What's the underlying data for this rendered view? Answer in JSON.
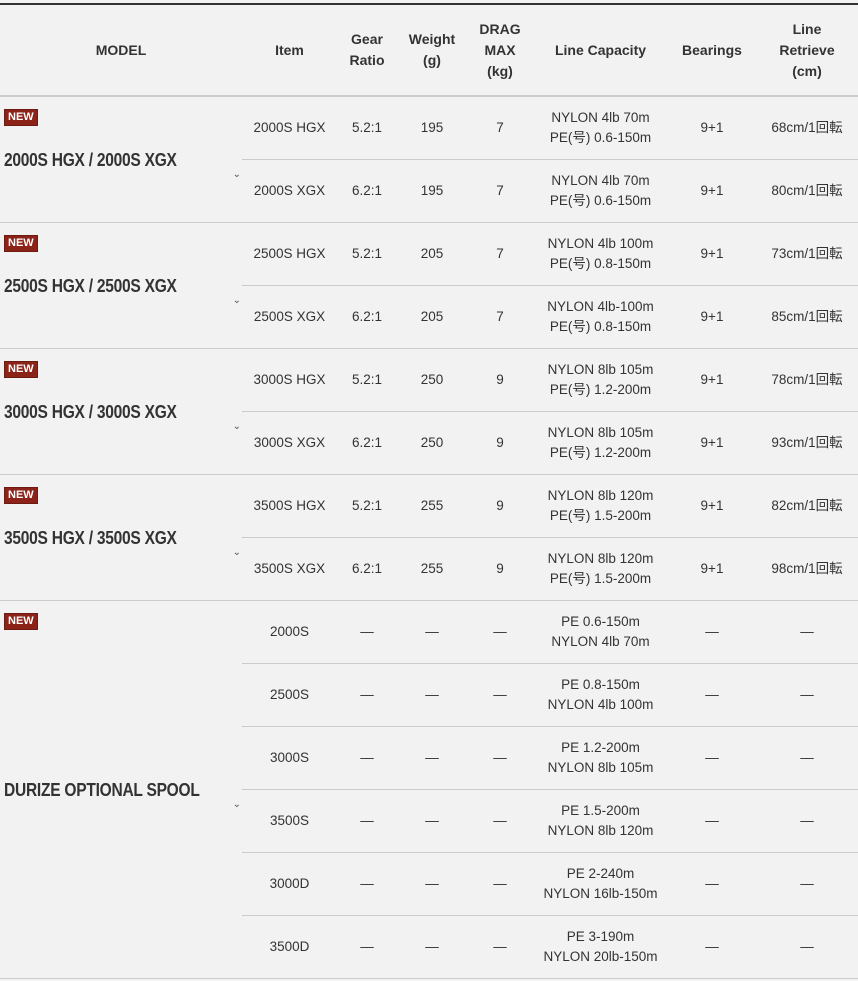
{
  "headers": [
    "MODEL",
    "Item",
    "Gear\nRatio",
    "Weight\n(g)",
    "DRAG\nMAX\n(kg)",
    "Line Capacity",
    "Bearings",
    "Line\nRetrieve\n(cm)"
  ],
  "badge_label": "NEW",
  "colors": {
    "badge": "#8b2318",
    "background": "#f2f2f2",
    "text": "#333333"
  },
  "groups": [
    {
      "model": "2000S HGX / 2000S XGX",
      "new": true,
      "rows": [
        [
          "2000S HGX",
          "5.2:1",
          "195",
          "7",
          "NYLON 4lb 70m\nPE(号) 0.6-150m",
          "9+1",
          "68cm/1回転"
        ],
        [
          "2000S XGX",
          "6.2:1",
          "195",
          "7",
          "NYLON 4lb 70m\nPE(号) 0.6-150m",
          "9+1",
          "80cm/1回転"
        ]
      ]
    },
    {
      "model": "2500S HGX / 2500S XGX",
      "new": true,
      "rows": [
        [
          "2500S HGX",
          "5.2:1",
          "205",
          "7",
          "NYLON 4lb 100m\nPE(号) 0.8-150m",
          "9+1",
          "73cm/1回転"
        ],
        [
          "2500S XGX",
          "6.2:1",
          "205",
          "7",
          "NYLON 4lb-100m\nPE(号) 0.8-150m",
          "9+1",
          "85cm/1回転"
        ]
      ]
    },
    {
      "model": "3000S HGX / 3000S XGX",
      "new": true,
      "rows": [
        [
          "3000S HGX",
          "5.2:1",
          "250",
          "9",
          "NYLON 8lb 105m\nPE(号) 1.2-200m",
          "9+1",
          "78cm/1回転"
        ],
        [
          "3000S XGX",
          "6.2:1",
          "250",
          "9",
          "NYLON 8lb 105m\nPE(号) 1.2-200m",
          "9+1",
          "93cm/1回転"
        ]
      ]
    },
    {
      "model": "3500S HGX / 3500S XGX",
      "new": true,
      "rows": [
        [
          "3500S HGX",
          "5.2:1",
          "255",
          "9",
          "NYLON 8lb 120m\nPE(号) 1.5-200m",
          "9+1",
          "82cm/1回転"
        ],
        [
          "3500S XGX",
          "6.2:1",
          "255",
          "9",
          "NYLON 8lb 120m\nPE(号) 1.5-200m",
          "9+1",
          "98cm/1回転"
        ]
      ]
    },
    {
      "model": "DURIZE OPTIONAL SPOOL",
      "new": true,
      "rows": [
        [
          "2000S",
          "—",
          "—",
          "—",
          "PE 0.6-150m\nNYLON 4lb 70m",
          "—",
          "—"
        ],
        [
          "2500S",
          "—",
          "—",
          "—",
          "PE 0.8-150m\nNYLON 4lb 100m",
          "—",
          "—"
        ],
        [
          "3000S",
          "—",
          "—",
          "—",
          "PE 1.2-200m\nNYLON 8lb 105m",
          "—",
          "—"
        ],
        [
          "3500S",
          "—",
          "—",
          "—",
          "PE 1.5-200m\nNYLON 8lb 120m",
          "—",
          "—"
        ],
        [
          "3000D",
          "—",
          "—",
          "—",
          "PE 2-240m\nNYLON 16lb-150m",
          "—",
          "—"
        ],
        [
          "3500D",
          "—",
          "—",
          "—",
          "PE 3-190m\nNYLON 20lb-150m",
          "—",
          "—"
        ]
      ]
    }
  ]
}
